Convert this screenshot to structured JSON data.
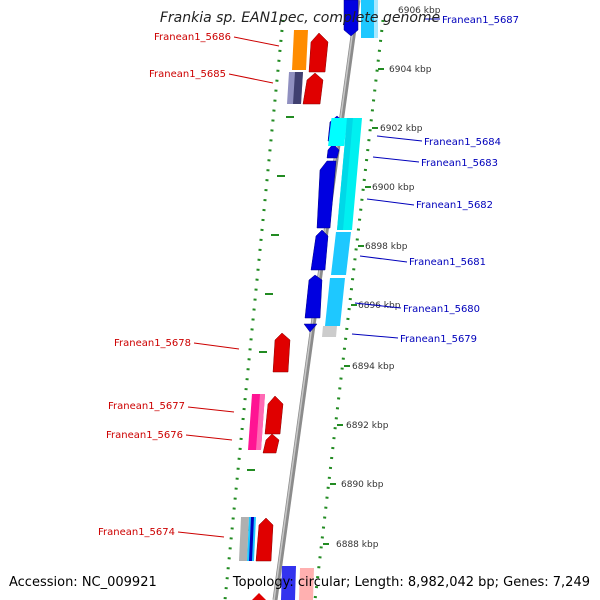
{
  "title": "Frankia sp. EAN1pec, complete genome",
  "accession": "Accession: NC_009921",
  "topology": "Topology: circular; Length: 8,982,042 bp; Genes: 7,249",
  "colors": {
    "left_label": "#cc0000",
    "right_label": "#0000bb",
    "backbone": "#8c8c8c",
    "tick": "#228b22",
    "ruler_text": "#333333"
  },
  "ruler_labels": [
    "6906 kbp",
    "6904 kbp",
    "6902 kbp",
    "6900 kbp",
    "6898 kbp",
    "6896 kbp",
    "6894 kbp",
    "6892 kbp",
    "6890 kbp",
    "6888 kbp"
  ],
  "left_genes": [
    "Franean1_5686",
    "Franean1_5685",
    "Franean1_5678",
    "Franean1_5677",
    "Franean1_5676",
    "Franean1_5674"
  ],
  "right_genes": [
    "Franean1_5687",
    "Franean1_5684",
    "Franean1_5683",
    "Franean1_5682",
    "Franean1_5681",
    "Franean1_5680",
    "Franean1_5679"
  ]
}
